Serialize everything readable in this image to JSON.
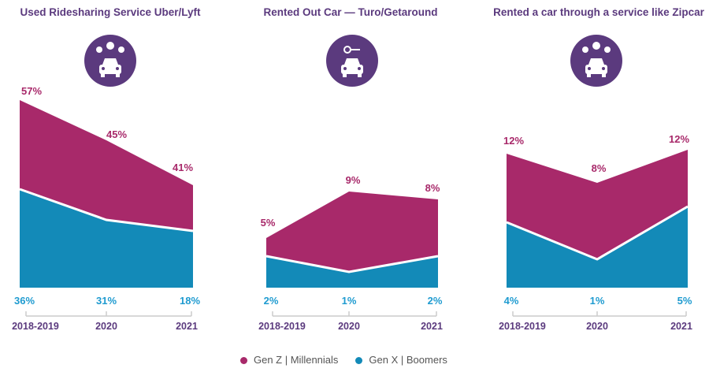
{
  "chart_data": [
    {
      "type": "area",
      "title": "Used Ridesharing Service Uber/Lyft",
      "icon": "rideshare-people-car-icon",
      "categories": [
        "2018-2019",
        "2020",
        "2021"
      ],
      "series": [
        {
          "name": "Gen Z | Millennials",
          "values": [
            57,
            45,
            41
          ],
          "labels": [
            "57%",
            "45%",
            "41%"
          ]
        },
        {
          "name": "Gen X | Boomers",
          "values": [
            36,
            31,
            18
          ],
          "labels": [
            "36%",
            "31%",
            "18%"
          ]
        }
      ]
    },
    {
      "type": "area",
      "title": "Rented Out Car — Turo/Getaround",
      "icon": "car-key-icon",
      "categories": [
        "2018-2019",
        "2020",
        "2021"
      ],
      "series": [
        {
          "name": "Gen Z | Millennials",
          "values": [
            5,
            9,
            8
          ],
          "labels": [
            "5%",
            "9%",
            "8%"
          ]
        },
        {
          "name": "Gen X | Boomers",
          "values": [
            2,
            1,
            2
          ],
          "labels": [
            "2%",
            "1%",
            "2%"
          ]
        }
      ]
    },
    {
      "type": "area",
      "title": "Rented a car through a service like Zipcar",
      "icon": "car-share-exchange-icon",
      "categories": [
        "2018-2019",
        "2020",
        "2021"
      ],
      "series": [
        {
          "name": "Gen Z | Millennials",
          "values": [
            12,
            8,
            12
          ],
          "labels": [
            "12%",
            "8%",
            "12%"
          ]
        },
        {
          "name": "Gen X | Boomers",
          "values": [
            4,
            1,
            5
          ],
          "labels": [
            "4%",
            "1%",
            "5%"
          ]
        }
      ]
    }
  ],
  "legend": [
    {
      "label": "Gen Z  |  Millennials",
      "color": "#a8296a"
    },
    {
      "label": "Gen X  |  Boomers",
      "color": "#138ab8"
    }
  ],
  "colors": {
    "genz": "#a8296a",
    "genx": "#138ab8",
    "accent": "#5b3a7e"
  }
}
